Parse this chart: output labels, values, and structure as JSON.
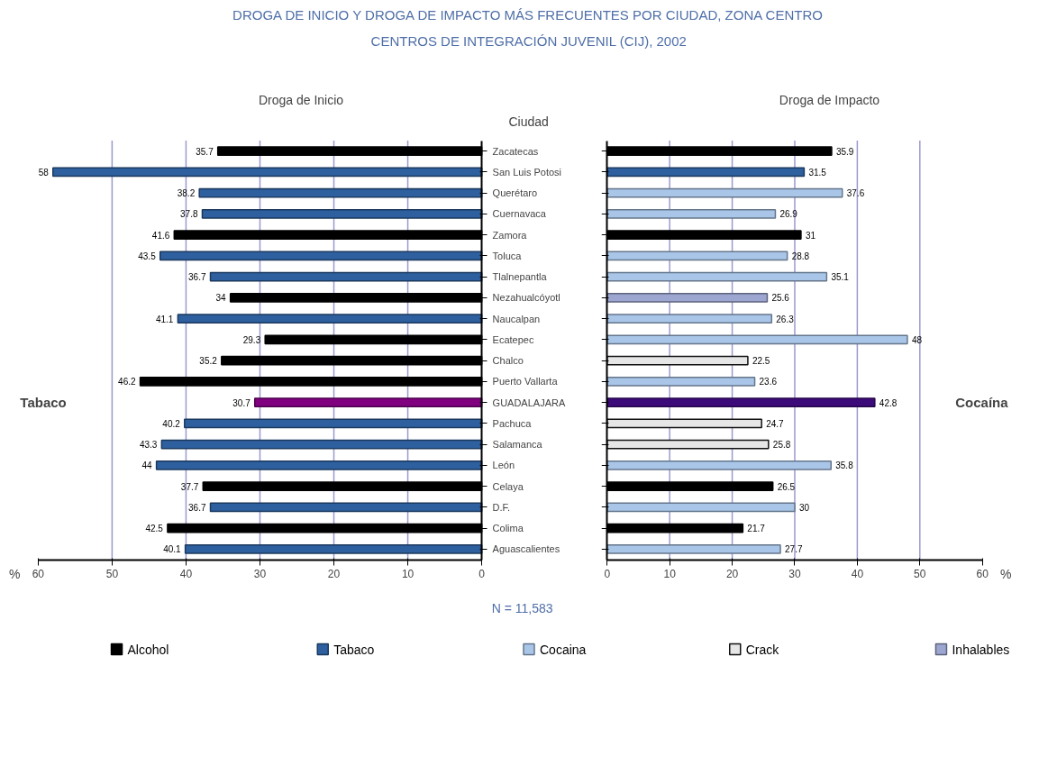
{
  "chart_data": [
    {
      "type": "other",
      "title": "DROGA DE INICIO Y DROGA DE IMPACTO MÁS FRECUENTES POR CIUDAD, ZONA CENTRO",
      "subtitle": "CENTROS DE INTEGRACIÓN JUVENIL (CIJ), 2002"
    },
    {
      "type": "bar",
      "orientation": "horizontal",
      "stacked": true,
      "title": "Droga de Inicio",
      "ylabel": "Ciudad",
      "xlabel": "%",
      "categories": [
        "Zacatecas",
        "San Luis Potosi",
        "Querétaro",
        "Cuernavaca",
        "Zamora",
        "Toluca",
        "Tlalnepantla",
        "Nezahualcóyotl",
        "Naucalpan",
        "Ecatepec",
        "Chalco",
        "Puerto Vallarta",
        "GUADALAJARA",
        "Pachuca",
        "Salamanca",
        "León",
        "Celaya",
        "D.F.",
        "Colima",
        "Aguascalientes"
      ],
      "series": [
        {
          "color": "#000000",
          "values": [
            35.7,
            null,
            null,
            null,
            41.6,
            null,
            null,
            34,
            null,
            29.3,
            35.2,
            46.2,
            null,
            null,
            null,
            null,
            37.7,
            null,
            42.5,
            null
          ]
        },
        {
          "color": "#2e5f9e",
          "colors": [
            null,
            null,
            null,
            null,
            null,
            null,
            null,
            null,
            null,
            null,
            null,
            null,
            "#800080",
            null,
            null,
            null,
            null,
            null,
            null,
            null
          ],
          "values": [
            null,
            58,
            38.2,
            37.8,
            null,
            43.5,
            36.7,
            null,
            41.1,
            null,
            null,
            null,
            30.7,
            40.2,
            43.3,
            44,
            null,
            36.7,
            null,
            40.1
          ]
        }
      ],
      "xlim": [
        60,
        0
      ],
      "xticks": [
        60,
        50,
        40,
        30,
        20,
        10,
        0
      ],
      "grid": "x",
      "data_labels": true,
      "annotations": [
        "Tabaco",
        "N = 11,583"
      ]
    },
    {
      "type": "bar",
      "orientation": "horizontal",
      "stacked": true,
      "title": "Droga de Impacto",
      "xlabel": "%",
      "tick_labels": "x",
      "categories": [
        "Zacatecas",
        "San Luis Potosi",
        "Querétaro",
        "Cuernavaca",
        "Zamora",
        "Toluca",
        "Tlalnepantla",
        "Nezahualcóyotl",
        "Naucalpan",
        "Ecatepec",
        "Chalco",
        "Puerto Vallarta",
        "GUADALAJARA",
        "Pachuca",
        "Salamanca",
        "León",
        "Celaya",
        "D.F.",
        "Colima",
        "Aguascalientes"
      ],
      "series": [
        {
          "name": "Alcohol",
          "color": "#000000",
          "values": [
            35.9,
            null,
            null,
            null,
            31,
            null,
            null,
            null,
            null,
            null,
            null,
            null,
            null,
            null,
            null,
            null,
            26.5,
            null,
            21.7,
            null
          ]
        },
        {
          "name": "Tabaco",
          "color": "#2e5f9e",
          "values": [
            null,
            31.5,
            null,
            null,
            null,
            null,
            null,
            null,
            null,
            null,
            null,
            null,
            null,
            null,
            null,
            null,
            null,
            null,
            null,
            null
          ]
        },
        {
          "name": "Cocaina",
          "color": "#a9c6e8",
          "colors": [
            null,
            null,
            null,
            null,
            null,
            null,
            null,
            null,
            null,
            null,
            null,
            null,
            "#3d0a7a",
            null,
            null,
            null,
            null,
            null,
            null,
            null
          ],
          "values": [
            null,
            null,
            37.6,
            26.9,
            null,
            28.8,
            35.1,
            null,
            26.3,
            48,
            null,
            23.6,
            42.8,
            null,
            null,
            35.8,
            null,
            30,
            null,
            27.7
          ]
        },
        {
          "name": "Crack",
          "color": "#e6e6e6",
          "values": [
            null,
            null,
            null,
            null,
            null,
            null,
            null,
            null,
            null,
            null,
            22.5,
            null,
            null,
            24.7,
            25.8,
            null,
            null,
            null,
            null,
            null
          ]
        },
        {
          "name": "Inhalables",
          "color": "#9da6d0",
          "values": [
            null,
            null,
            null,
            null,
            null,
            null,
            null,
            25.6,
            null,
            null,
            null,
            null,
            null,
            null,
            null,
            null,
            null,
            null,
            null,
            null
          ]
        }
      ],
      "xlim": [
        0,
        60
      ],
      "xticks": [
        0,
        10,
        20,
        30,
        40,
        50,
        60
      ],
      "grid": "x",
      "data_labels": true,
      "legend": "bottom",
      "annotations": [
        "Cocaína"
      ]
    }
  ]
}
